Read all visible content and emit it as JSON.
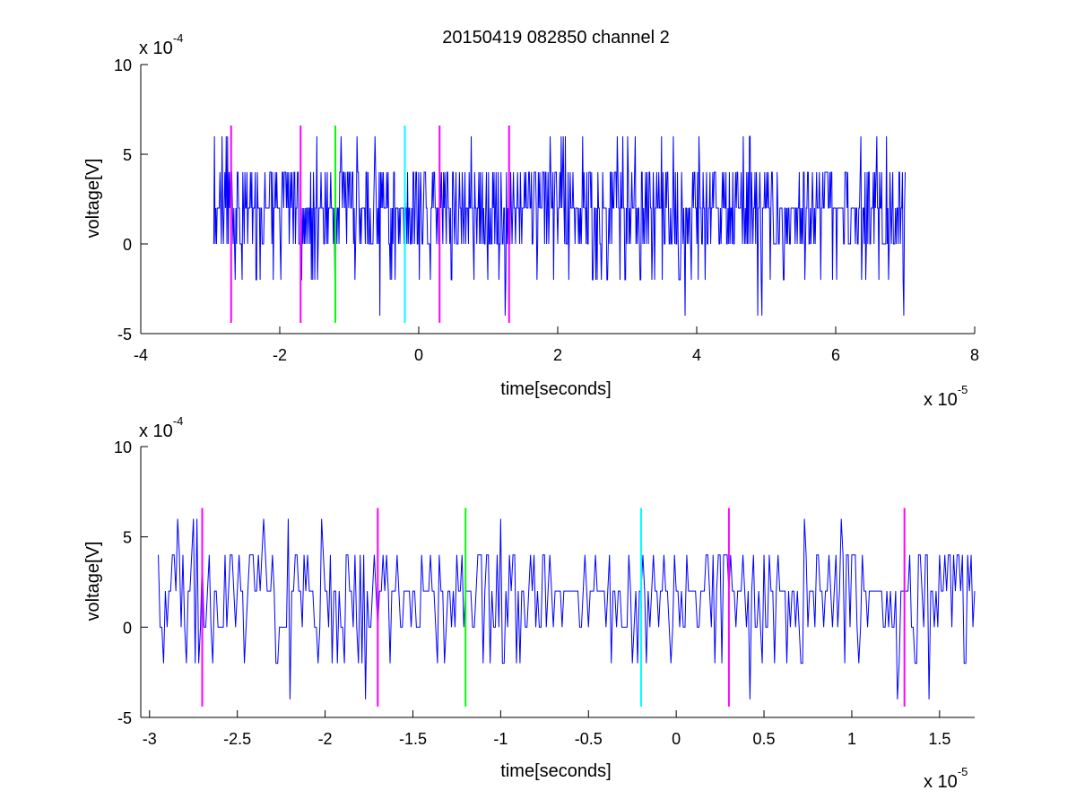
{
  "figure": {
    "title": "20150419 082850 channel 2",
    "background": "#ffffff"
  },
  "colors": {
    "signal": "#0000ff",
    "marker_magenta": "#ff00ff",
    "marker_green": "#00ff00",
    "marker_cyan": "#00ffff",
    "axes": "#000000"
  },
  "chart_data": [
    {
      "type": "line",
      "xlabel": "time[seconds]",
      "ylabel": "voltage[V]",
      "x_exponent_label": "x 10",
      "x_exponent_power": "-5",
      "y_exponent_label": "x 10",
      "y_exponent_power": "-4",
      "xlim": [
        -4,
        8
      ],
      "ylim": [
        -5,
        10
      ],
      "xticks": [
        -4,
        -2,
        0,
        2,
        4,
        6,
        8
      ],
      "xtick_labels": [
        "-4",
        "-2",
        "0",
        "2",
        "4",
        "6",
        "8"
      ],
      "yticks": [
        -5,
        0,
        5,
        10
      ],
      "ytick_labels": [
        "-5",
        "0",
        "5",
        "10"
      ],
      "grid": false,
      "series": [
        {
          "style": "noisy-quantized-trace",
          "x_start": -2.95,
          "x_end": 7.0,
          "levels": [
            -4,
            -2,
            0,
            2,
            4,
            6
          ],
          "baseline": 2,
          "color": "#0000ff"
        }
      ],
      "markers": [
        {
          "x": -2.7,
          "color": "#ff00ff",
          "y_range": [
            -4.4,
            6.6
          ]
        },
        {
          "x": -1.7,
          "color": "#ff00ff",
          "y_range": [
            -4.4,
            6.6
          ]
        },
        {
          "x": -1.2,
          "color": "#00ff00",
          "y_range": [
            -4.4,
            6.6
          ]
        },
        {
          "x": -0.2,
          "color": "#00ffff",
          "y_range": [
            -4.4,
            6.6
          ]
        },
        {
          "x": 0.3,
          "color": "#ff00ff",
          "y_range": [
            -4.4,
            6.6
          ]
        },
        {
          "x": 1.3,
          "color": "#ff00ff",
          "y_range": [
            -4.4,
            6.6
          ]
        }
      ]
    },
    {
      "type": "line",
      "xlabel": "time[seconds]",
      "ylabel": "voltage[V]",
      "x_exponent_label": "x 10",
      "x_exponent_power": "-5",
      "y_exponent_label": "x 10",
      "y_exponent_power": "-4",
      "xlim": [
        -3.05,
        1.7
      ],
      "ylim": [
        -5,
        10
      ],
      "xticks": [
        -3,
        -2.5,
        -2,
        -1.5,
        -1,
        -0.5,
        0,
        0.5,
        1,
        1.5
      ],
      "xtick_labels": [
        "-3",
        "-2.5",
        "-2",
        "-1.5",
        "-1",
        "-0.5",
        "0",
        "0.5",
        "1",
        "1.5"
      ],
      "yticks": [
        -5,
        0,
        5,
        10
      ],
      "ytick_labels": [
        "-5",
        "0",
        "5",
        "10"
      ],
      "grid": false,
      "series": [
        {
          "style": "noisy-quantized-trace",
          "x_start": -2.95,
          "x_end": 1.7,
          "levels": [
            -4,
            -2,
            0,
            2,
            4,
            6
          ],
          "baseline": 2,
          "color": "#0000ff"
        }
      ],
      "markers": [
        {
          "x": -2.7,
          "color": "#ff00ff",
          "y_range": [
            -4.4,
            6.6
          ]
        },
        {
          "x": -1.7,
          "color": "#ff00ff",
          "y_range": [
            -4.4,
            6.6
          ]
        },
        {
          "x": -1.2,
          "color": "#00ff00",
          "y_range": [
            -4.4,
            6.6
          ]
        },
        {
          "x": -0.2,
          "color": "#00ffff",
          "y_range": [
            -4.4,
            6.6
          ]
        },
        {
          "x": 0.3,
          "color": "#ff00ff",
          "y_range": [
            -4.4,
            6.6
          ]
        },
        {
          "x": 1.3,
          "color": "#ff00ff",
          "y_range": [
            -4.4,
            6.6
          ]
        }
      ]
    }
  ]
}
